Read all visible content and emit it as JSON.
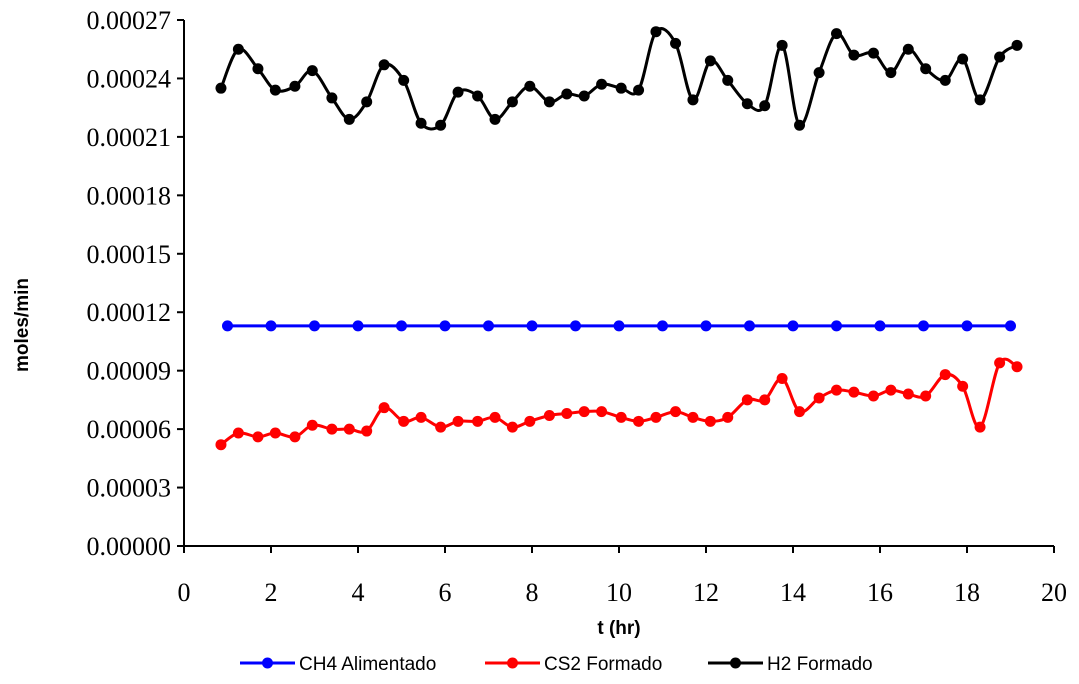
{
  "chart_data": {
    "type": "line",
    "xlabel": "t (hr)",
    "ylabel": "moles/min",
    "xlim": [
      0,
      20
    ],
    "ylim": [
      0,
      0.00027
    ],
    "x_ticks": [
      "0",
      "2",
      "4",
      "6",
      "8",
      "10",
      "12",
      "14",
      "16",
      "18",
      "20"
    ],
    "y_ticks": [
      "0.00000",
      "0.00003",
      "0.00006",
      "0.00009",
      "0.00012",
      "0.00015",
      "0.00018",
      "0.00021",
      "0.00024",
      "0.00027"
    ],
    "grid": false,
    "legend_position": "bottom",
    "series": [
      {
        "name": "CH4 Alimentado",
        "color": "#0000ff",
        "x": [
          1.0,
          2.0,
          3.0,
          4.0,
          5.0,
          6.0,
          7.0,
          8.0,
          9.0,
          10.0,
          11.0,
          12.0,
          13.0,
          14.0,
          15.0,
          16.0,
          17.0,
          18.0,
          19.0
        ],
        "y": [
          0.000113,
          0.000113,
          0.000113,
          0.000113,
          0.000113,
          0.000113,
          0.000113,
          0.000113,
          0.000113,
          0.000113,
          0.000113,
          0.000113,
          0.000113,
          0.000113,
          0.000113,
          0.000113,
          0.000113,
          0.000113,
          0.000113
        ]
      },
      {
        "name": "CS2 Formado",
        "color": "#ff0000",
        "x": [
          0.85,
          1.25,
          1.7,
          2.1,
          2.55,
          2.95,
          3.4,
          3.8,
          4.2,
          4.6,
          5.05,
          5.45,
          5.9,
          6.3,
          6.75,
          7.15,
          7.55,
          7.95,
          8.4,
          8.8,
          9.2,
          9.6,
          10.05,
          10.45,
          10.85,
          11.3,
          11.7,
          12.1,
          12.5,
          12.95,
          13.35,
          13.75,
          14.15,
          14.6,
          15.0,
          15.4,
          15.85,
          16.25,
          16.65,
          17.05,
          17.5,
          17.9,
          18.3,
          18.75,
          19.15
        ],
        "y": [
          5.2e-05,
          5.8e-05,
          5.6e-05,
          5.8e-05,
          5.6e-05,
          6.2e-05,
          6e-05,
          6e-05,
          5.9e-05,
          7.1e-05,
          6.4e-05,
          6.6e-05,
          6.1e-05,
          6.4e-05,
          6.4e-05,
          6.6e-05,
          6.1e-05,
          6.4e-05,
          6.7e-05,
          6.8e-05,
          6.9e-05,
          6.9e-05,
          6.6e-05,
          6.4e-05,
          6.6e-05,
          6.9e-05,
          6.6e-05,
          6.4e-05,
          6.6e-05,
          7.5e-05,
          7.5e-05,
          8.6e-05,
          6.9e-05,
          7.6e-05,
          8e-05,
          7.9e-05,
          7.7e-05,
          8e-05,
          7.8e-05,
          7.7e-05,
          8.8e-05,
          8.2e-05,
          6.1e-05,
          9.4e-05,
          9.2e-05
        ]
      },
      {
        "name": "H2 Formado",
        "color": "#000000",
        "x": [
          0.85,
          1.25,
          1.7,
          2.1,
          2.55,
          2.95,
          3.4,
          3.8,
          4.2,
          4.6,
          5.05,
          5.45,
          5.9,
          6.3,
          6.75,
          7.15,
          7.55,
          7.95,
          8.4,
          8.8,
          9.2,
          9.6,
          10.05,
          10.45,
          10.85,
          11.3,
          11.7,
          12.1,
          12.5,
          12.95,
          13.35,
          13.75,
          14.15,
          14.6,
          15.0,
          15.4,
          15.85,
          16.25,
          16.65,
          17.05,
          17.5,
          17.9,
          18.3,
          18.75,
          19.15
        ],
        "y": [
          0.000235,
          0.000255,
          0.000245,
          0.000234,
          0.000236,
          0.000244,
          0.00023,
          0.000219,
          0.000228,
          0.000247,
          0.000239,
          0.000217,
          0.000216,
          0.000233,
          0.000231,
          0.000219,
          0.000228,
          0.000236,
          0.000228,
          0.000232,
          0.000231,
          0.000237,
          0.000235,
          0.000234,
          0.000264,
          0.000258,
          0.000229,
          0.000249,
          0.000239,
          0.000227,
          0.000226,
          0.000257,
          0.000216,
          0.000243,
          0.000263,
          0.000252,
          0.000253,
          0.000243,
          0.000255,
          0.000245,
          0.000239,
          0.00025,
          0.000229,
          0.000251,
          0.000257
        ]
      }
    ]
  }
}
